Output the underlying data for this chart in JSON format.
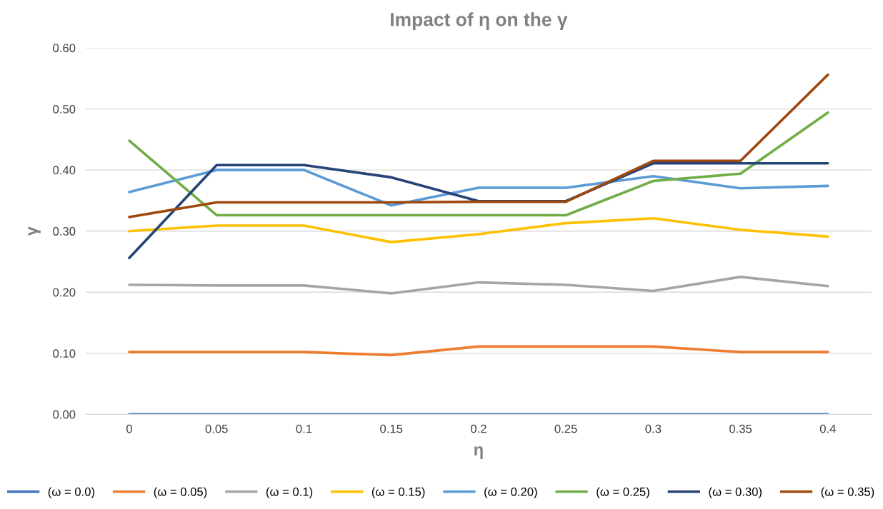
{
  "chart_data": {
    "type": "line",
    "title": "Impact of η on the γ",
    "xlabel": "η",
    "ylabel": "γ",
    "categories": [
      "0",
      "0.05",
      "0.1",
      "0.15",
      "0.2",
      "0.25",
      "0.3",
      "0.35",
      "0.4"
    ],
    "ylim": [
      0,
      0.6
    ],
    "yticks": [
      {
        "value": 0,
        "label": "0.00"
      },
      {
        "value": 0.1,
        "label": "0.10"
      },
      {
        "value": 0.2,
        "label": "0.20"
      },
      {
        "value": 0.3,
        "label": "0.30"
      },
      {
        "value": 0.4,
        "label": "0.40"
      },
      {
        "value": 0.5,
        "label": "0.50"
      },
      {
        "value": 0.6,
        "label": "0.60"
      }
    ],
    "grid": "y",
    "legend": "bottom",
    "marker": "none",
    "line_style": "solid",
    "series": [
      {
        "name": "(ω = 0.0)",
        "color": "#4472c4",
        "values": [
          0,
          0,
          0,
          0,
          0,
          0,
          0,
          0,
          0
        ]
      },
      {
        "name": "(ω = 0.05)",
        "color": "#ed7d31",
        "values": [
          0.102,
          0.102,
          0.102,
          0.097,
          0.111,
          0.111,
          0.111,
          0.102,
          0.102
        ]
      },
      {
        "name": "(ω = 0.1)",
        "color": "#a5a5a5",
        "values": [
          0.212,
          0.211,
          0.211,
          0.198,
          0.216,
          0.212,
          0.202,
          0.225,
          0.21
        ]
      },
      {
        "name": "(ω = 0.15)",
        "color": "#ffc000",
        "values": [
          0.3,
          0.309,
          0.309,
          0.282,
          0.295,
          0.313,
          0.321,
          0.302,
          0.291
        ]
      },
      {
        "name": "(ω = 0.20)",
        "color": "#5b9bd5",
        "values": [
          0.364,
          0.4,
          0.4,
          0.342,
          0.371,
          0.371,
          0.39,
          0.37,
          0.374
        ]
      },
      {
        "name": "(ω = 0.25)",
        "color": "#70ad47",
        "values": [
          0.448,
          0.326,
          0.326,
          0.326,
          0.326,
          0.326,
          0.382,
          0.394,
          0.494
        ]
      },
      {
        "name": "(ω = 0.30)",
        "color": "#264478",
        "values": [
          0.256,
          0.408,
          0.408,
          0.388,
          0.349,
          0.349,
          0.411,
          0.411,
          0.411
        ]
      },
      {
        "name": "(ω = 0.35)",
        "color": "#9e480e",
        "values": [
          0.323,
          0.347,
          0.347,
          0.347,
          0.348,
          0.348,
          0.415,
          0.415,
          0.556
        ]
      }
    ]
  }
}
